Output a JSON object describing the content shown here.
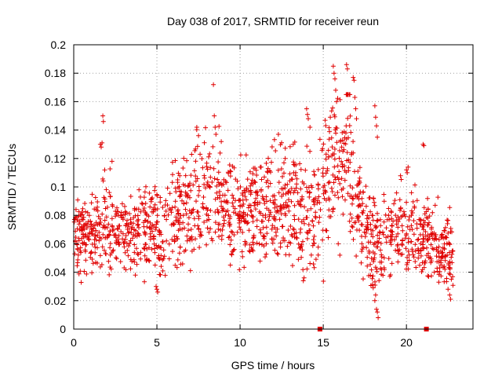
{
  "chart_data": {
    "type": "scatter",
    "title": "Day 038 of 2017, SRMTID for receiver reun",
    "xlabel": "GPS time / hours",
    "ylabel": "SRMTID / TECUs",
    "xlim": [
      0,
      24
    ],
    "ylim": [
      0,
      0.2
    ],
    "grid": true,
    "legend": "none",
    "marker": "plus",
    "series_color": "#e00000",
    "x_ticks": [
      0,
      5,
      10,
      15,
      20
    ],
    "x_tick_labels": [
      "0",
      "5",
      "10",
      "15",
      "20"
    ],
    "y_ticks": [
      0,
      0.02,
      0.04,
      0.06,
      0.08,
      0.1,
      0.12,
      0.14,
      0.16,
      0.18,
      0.2
    ],
    "y_tick_labels": [
      "0",
      "0.02",
      "0.04",
      "0.06",
      "0.08",
      "0.1",
      "0.12",
      "0.14",
      "0.16",
      "0.18",
      "0.2"
    ],
    "trend": [
      [
        0.0,
        0.068,
        0.012
      ],
      [
        0.5,
        0.068,
        0.013
      ],
      [
        1.0,
        0.068,
        0.014
      ],
      [
        1.5,
        0.072,
        0.015
      ],
      [
        2.0,
        0.072,
        0.016
      ],
      [
        2.5,
        0.068,
        0.014
      ],
      [
        3.0,
        0.07,
        0.014
      ],
      [
        3.5,
        0.066,
        0.013
      ],
      [
        4.0,
        0.072,
        0.014
      ],
      [
        4.5,
        0.07,
        0.014
      ],
      [
        5.0,
        0.068,
        0.014
      ],
      [
        5.5,
        0.07,
        0.016
      ],
      [
        6.0,
        0.076,
        0.018
      ],
      [
        6.5,
        0.082,
        0.018
      ],
      [
        7.0,
        0.088,
        0.019
      ],
      [
        7.5,
        0.092,
        0.019
      ],
      [
        8.0,
        0.092,
        0.02
      ],
      [
        8.5,
        0.09,
        0.019
      ],
      [
        9.0,
        0.09,
        0.019
      ],
      [
        9.5,
        0.085,
        0.018
      ],
      [
        10.0,
        0.082,
        0.017
      ],
      [
        10.5,
        0.082,
        0.017
      ],
      [
        11.0,
        0.084,
        0.017
      ],
      [
        11.5,
        0.084,
        0.018
      ],
      [
        12.0,
        0.084,
        0.018
      ],
      [
        12.5,
        0.086,
        0.019
      ],
      [
        13.0,
        0.086,
        0.019
      ],
      [
        13.5,
        0.085,
        0.019
      ],
      [
        14.0,
        0.082,
        0.02
      ],
      [
        14.5,
        0.08,
        0.02
      ],
      [
        15.0,
        0.1,
        0.024
      ],
      [
        15.5,
        0.12,
        0.024
      ],
      [
        16.0,
        0.115,
        0.024
      ],
      [
        16.5,
        0.125,
        0.026
      ],
      [
        17.0,
        0.09,
        0.02
      ],
      [
        17.5,
        0.072,
        0.016
      ],
      [
        18.0,
        0.064,
        0.018
      ],
      [
        18.5,
        0.06,
        0.016
      ],
      [
        19.0,
        0.068,
        0.014
      ],
      [
        19.5,
        0.068,
        0.014
      ],
      [
        20.0,
        0.07,
        0.015
      ],
      [
        20.5,
        0.066,
        0.014
      ],
      [
        21.0,
        0.064,
        0.014
      ],
      [
        21.5,
        0.06,
        0.014
      ],
      [
        22.0,
        0.056,
        0.012
      ],
      [
        22.5,
        0.056,
        0.013
      ],
      [
        22.8,
        0.055,
        0.013
      ]
    ],
    "outliers": [
      [
        1.6,
        0.13
      ],
      [
        1.65,
        0.128
      ],
      [
        1.7,
        0.131
      ],
      [
        1.75,
        0.15
      ],
      [
        1.78,
        0.146
      ],
      [
        2.3,
        0.118
      ],
      [
        8.4,
        0.172
      ],
      [
        8.45,
        0.15
      ],
      [
        8.5,
        0.142
      ],
      [
        8.55,
        0.137
      ],
      [
        7.4,
        0.142
      ],
      [
        7.5,
        0.136
      ],
      [
        12.3,
        0.137
      ],
      [
        13.2,
        0.13
      ],
      [
        14.0,
        0.155
      ],
      [
        14.05,
        0.151
      ],
      [
        14.1,
        0.148
      ],
      [
        14.2,
        0.142
      ],
      [
        15.6,
        0.185
      ],
      [
        15.65,
        0.18
      ],
      [
        15.7,
        0.176
      ],
      [
        15.75,
        0.168
      ],
      [
        15.8,
        0.16
      ],
      [
        16.4,
        0.186
      ],
      [
        16.45,
        0.183
      ],
      [
        16.6,
        0.165
      ],
      [
        16.8,
        0.177
      ],
      [
        16.85,
        0.175
      ],
      [
        16.9,
        0.163
      ],
      [
        16.95,
        0.155
      ],
      [
        17.0,
        0.148
      ],
      [
        18.1,
        0.157
      ],
      [
        18.15,
        0.149
      ],
      [
        18.2,
        0.143
      ],
      [
        18.25,
        0.135
      ],
      [
        18.2,
        0.014
      ],
      [
        18.25,
        0.012
      ],
      [
        18.3,
        0.008
      ],
      [
        18.1,
        0.02
      ],
      [
        18.15,
        0.024
      ],
      [
        16.0,
        0.052
      ],
      [
        15.9,
        0.06
      ],
      [
        20.0,
        0.112
      ],
      [
        20.05,
        0.11
      ],
      [
        20.1,
        0.114
      ],
      [
        21.0,
        0.13
      ],
      [
        21.05,
        0.129
      ],
      [
        22.6,
        0.024
      ],
      [
        22.65,
        0.021
      ],
      [
        22.5,
        0.028
      ],
      [
        22.7,
        0.035
      ],
      [
        4.95,
        0.03
      ],
      [
        5.0,
        0.028
      ],
      [
        5.05,
        0.026
      ],
      [
        13.8,
        0.034
      ],
      [
        13.85,
        0.036
      ],
      [
        14.8,
        0.0
      ],
      [
        21.2,
        0.0
      ]
    ],
    "points_per_hour": 72
  }
}
